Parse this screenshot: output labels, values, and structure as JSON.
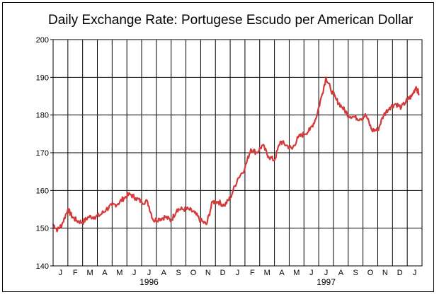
{
  "chart_data": {
    "type": "line",
    "title": "Daily Exchange Rate: Portugese Escudo per American Dollar",
    "xlabel": "",
    "ylabel": "",
    "ylim": [
      140,
      200
    ],
    "yticks": [
      140,
      150,
      160,
      170,
      180,
      190,
      200
    ],
    "grid": true,
    "color": "#d43a3a",
    "months": [
      "J",
      "F",
      "M",
      "A",
      "M",
      "J",
      "J",
      "A",
      "S",
      "O",
      "N",
      "D",
      "J",
      "F",
      "M",
      "A",
      "M",
      "J",
      "J",
      "A",
      "S",
      "O",
      "N",
      "D",
      "J"
    ],
    "years": [
      "1996",
      "1997"
    ],
    "x": [
      0.0,
      0.3,
      0.6,
      1.0,
      1.3,
      1.6,
      2.0,
      2.4,
      2.8,
      3.2,
      3.6,
      4.0,
      4.4,
      4.8,
      5.2,
      5.6,
      6.0,
      6.4,
      6.8,
      7.2,
      7.6,
      8.0,
      8.4,
      8.8,
      9.2,
      9.6,
      10.0,
      10.4,
      10.8,
      11.2,
      11.6,
      12.0,
      12.5,
      13.0,
      13.4,
      13.8,
      14.2,
      14.6,
      15.0,
      15.4,
      15.8,
      16.2,
      16.6,
      17.0,
      17.4,
      17.8,
      18.2,
      18.5,
      18.8,
      19.2,
      19.6,
      20.0,
      20.4,
      20.8,
      21.2,
      21.6,
      22.0,
      22.4,
      22.8,
      23.2,
      23.6,
      24.0,
      24.3,
      24.6,
      24.8
    ],
    "values": [
      151,
      149.5,
      151,
      155,
      153,
      152,
      151.5,
      153,
      153,
      153.5,
      155,
      156,
      156.5,
      158,
      159,
      158,
      157,
      157,
      152,
      152.5,
      153,
      152,
      155,
      155,
      155,
      154,
      152,
      151,
      157,
      157,
      156,
      158,
      163,
      166,
      171,
      170,
      172,
      169,
      168,
      173,
      172,
      171,
      174,
      175,
      176,
      179,
      185,
      190,
      187,
      184,
      182,
      180,
      179.5,
      179,
      180,
      176,
      176,
      180,
      182,
      183,
      182,
      184,
      185,
      187.5,
      185.5
    ]
  }
}
